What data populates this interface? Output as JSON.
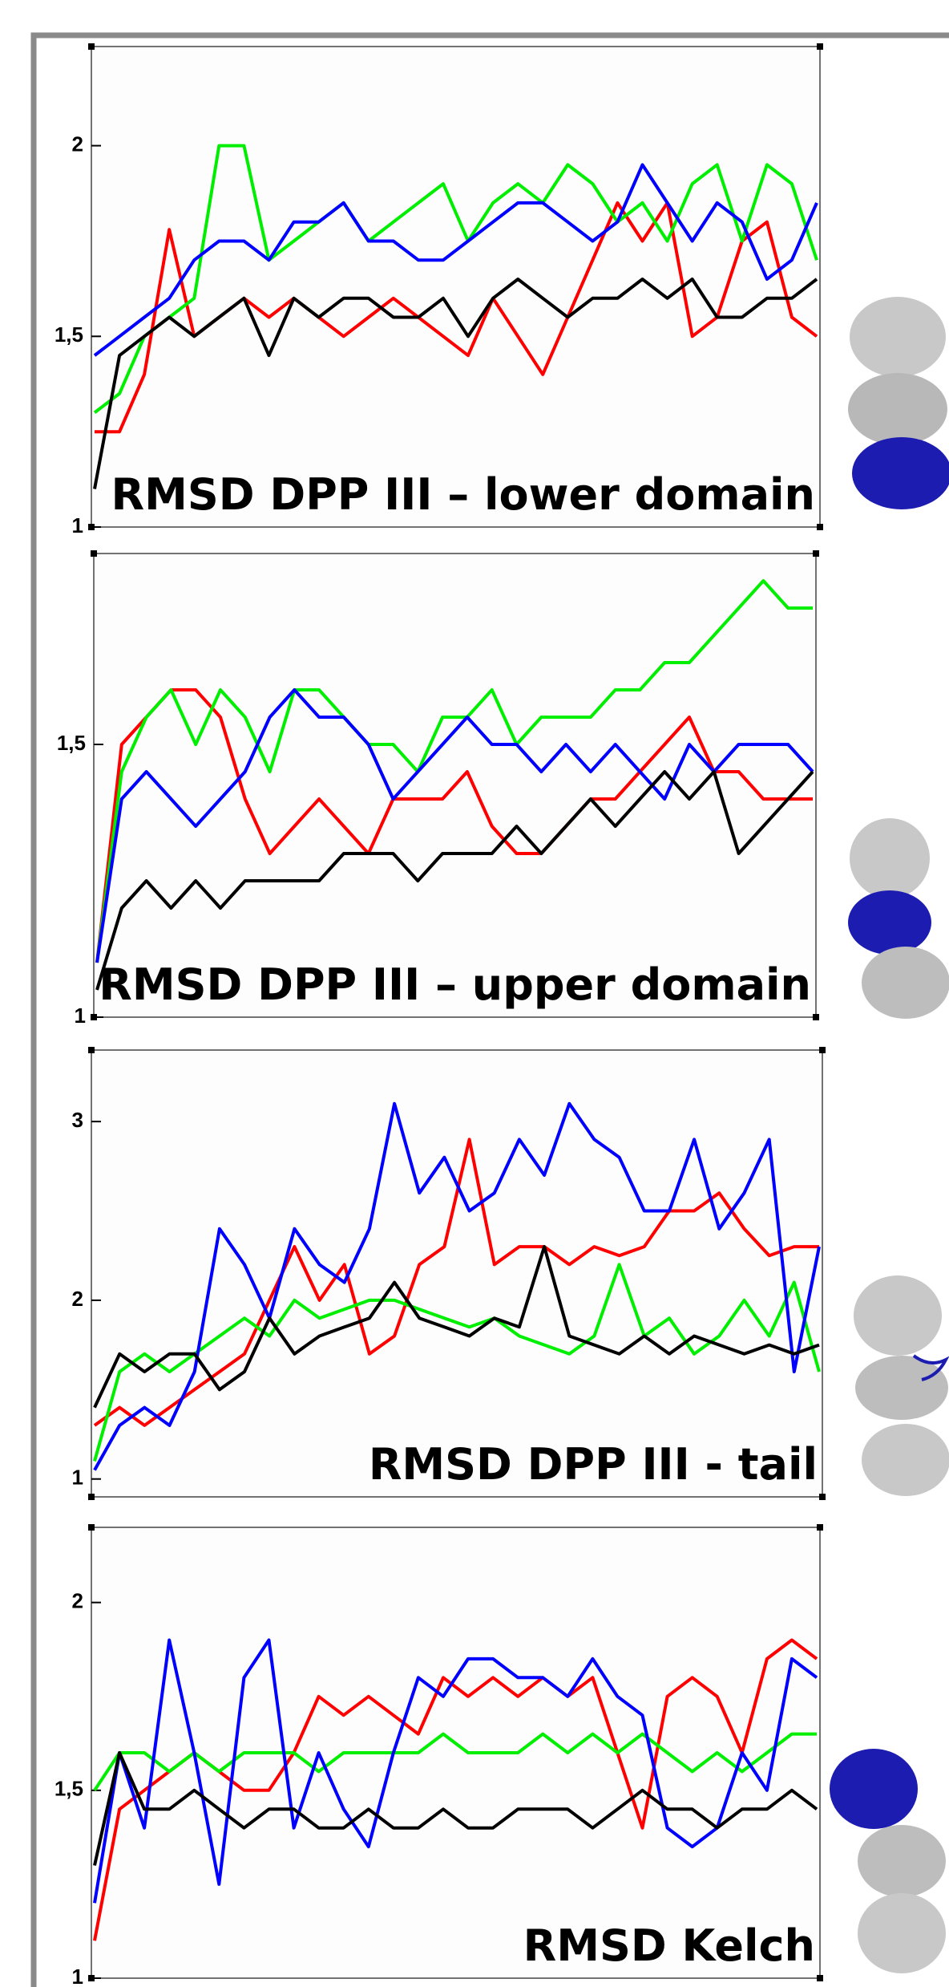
{
  "chart_data": [
    {
      "type": "line",
      "title": "RMSD DPP III – lower domain",
      "ylim": [
        1,
        2.26
      ],
      "yticks": [
        1,
        {
          "value": 1.5,
          "label": "1,5"
        },
        2
      ],
      "series": [
        {
          "color": "#ff0000",
          "values": [
            1.25,
            1.25,
            1.4,
            1.78,
            1.5,
            1.55,
            1.6,
            1.55,
            1.6,
            1.55,
            1.5,
            1.55,
            1.6,
            1.55,
            1.5,
            1.45,
            1.6,
            1.5,
            1.4,
            1.55,
            1.7,
            1.85,
            1.75,
            1.85,
            1.5,
            1.55,
            1.75,
            1.8,
            1.55,
            1.5
          ]
        },
        {
          "color": "#00ee00",
          "values": [
            1.3,
            1.35,
            1.5,
            1.55,
            1.6,
            2.0,
            2.0,
            1.7,
            1.75,
            1.8,
            1.85,
            1.75,
            1.8,
            1.85,
            1.9,
            1.75,
            1.85,
            1.9,
            1.85,
            1.95,
            1.9,
            1.8,
            1.85,
            1.75,
            1.9,
            1.95,
            1.75,
            1.95,
            1.9,
            1.7
          ]
        },
        {
          "color": "#0000ff",
          "values": [
            1.45,
            1.5,
            1.55,
            1.6,
            1.7,
            1.75,
            1.75,
            1.7,
            1.8,
            1.8,
            1.85,
            1.75,
            1.75,
            1.7,
            1.7,
            1.75,
            1.8,
            1.85,
            1.85,
            1.8,
            1.75,
            1.8,
            1.95,
            1.85,
            1.75,
            1.85,
            1.8,
            1.65,
            1.7,
            1.85
          ]
        },
        {
          "color": "#000000",
          "values": [
            1.1,
            1.45,
            1.5,
            1.55,
            1.5,
            1.55,
            1.6,
            1.45,
            1.6,
            1.55,
            1.6,
            1.6,
            1.55,
            1.55,
            1.6,
            1.5,
            1.6,
            1.65,
            1.6,
            1.55,
            1.6,
            1.6,
            1.65,
            1.6,
            1.65,
            1.55,
            1.55,
            1.6,
            1.6,
            1.65
          ]
        }
      ]
    },
    {
      "type": "line",
      "title": "RMSD DPP III – upper domain",
      "ylim": [
        1,
        1.85
      ],
      "yticks": [
        1,
        {
          "value": 1.5,
          "label": "1,5"
        }
      ],
      "series": [
        {
          "color": "#ff0000",
          "values": [
            1.1,
            1.5,
            1.55,
            1.6,
            1.6,
            1.55,
            1.4,
            1.3,
            1.35,
            1.4,
            1.35,
            1.3,
            1.4,
            1.4,
            1.4,
            1.45,
            1.35,
            1.3,
            1.3,
            1.35,
            1.4,
            1.4,
            1.45,
            1.5,
            1.55,
            1.45,
            1.45,
            1.4,
            1.4,
            1.4
          ]
        },
        {
          "color": "#00ee00",
          "values": [
            1.1,
            1.45,
            1.55,
            1.6,
            1.5,
            1.6,
            1.55,
            1.45,
            1.6,
            1.6,
            1.55,
            1.5,
            1.5,
            1.45,
            1.55,
            1.55,
            1.6,
            1.5,
            1.55,
            1.55,
            1.55,
            1.6,
            1.6,
            1.65,
            1.65,
            1.7,
            1.75,
            1.8,
            1.75,
            1.75
          ]
        },
        {
          "color": "#0000ff",
          "values": [
            1.1,
            1.4,
            1.45,
            1.4,
            1.35,
            1.4,
            1.45,
            1.55,
            1.6,
            1.55,
            1.55,
            1.5,
            1.4,
            1.45,
            1.5,
            1.55,
            1.5,
            1.5,
            1.45,
            1.5,
            1.45,
            1.5,
            1.45,
            1.4,
            1.5,
            1.45,
            1.5,
            1.5,
            1.5,
            1.45
          ]
        },
        {
          "color": "#000000",
          "values": [
            1.05,
            1.2,
            1.25,
            1.2,
            1.25,
            1.2,
            1.25,
            1.25,
            1.25,
            1.25,
            1.3,
            1.3,
            1.3,
            1.25,
            1.3,
            1.3,
            1.3,
            1.35,
            1.3,
            1.35,
            1.4,
            1.35,
            1.4,
            1.45,
            1.4,
            1.45,
            1.3,
            1.35,
            1.4,
            1.45
          ]
        }
      ]
    },
    {
      "type": "line",
      "title": "RMSD DPP III - tail",
      "ylim": [
        0.9,
        3.4
      ],
      "yticks": [
        1,
        2,
        3
      ],
      "series": [
        {
          "color": "#ff0000",
          "values": [
            1.3,
            1.4,
            1.3,
            1.4,
            1.5,
            1.6,
            1.7,
            2.0,
            2.3,
            2.0,
            2.2,
            1.7,
            1.8,
            2.2,
            2.3,
            2.9,
            2.2,
            2.3,
            2.3,
            2.2,
            2.3,
            2.25,
            2.3,
            2.5,
            2.5,
            2.6,
            2.4,
            2.25,
            2.3,
            2.3
          ]
        },
        {
          "color": "#00ee00",
          "values": [
            1.1,
            1.6,
            1.7,
            1.6,
            1.7,
            1.8,
            1.9,
            1.8,
            2.0,
            1.9,
            1.95,
            2.0,
            2.0,
            1.95,
            1.9,
            1.85,
            1.9,
            1.8,
            1.75,
            1.7,
            1.8,
            2.2,
            1.8,
            1.9,
            1.7,
            1.8,
            2.0,
            1.8,
            2.1,
            1.6
          ]
        },
        {
          "color": "#0000ff",
          "values": [
            1.05,
            1.3,
            1.4,
            1.3,
            1.6,
            2.4,
            2.2,
            1.9,
            2.4,
            2.2,
            2.1,
            2.4,
            3.1,
            2.6,
            2.8,
            2.5,
            2.6,
            2.9,
            2.7,
            3.1,
            2.9,
            2.8,
            2.5,
            2.5,
            2.9,
            2.4,
            2.6,
            2.9,
            1.6,
            2.3
          ]
        },
        {
          "color": "#000000",
          "values": [
            1.4,
            1.7,
            1.6,
            1.7,
            1.7,
            1.5,
            1.6,
            1.9,
            1.7,
            1.8,
            1.85,
            1.9,
            2.1,
            1.9,
            1.85,
            1.8,
            1.9,
            1.85,
            2.3,
            1.8,
            1.75,
            1.7,
            1.8,
            1.7,
            1.8,
            1.75,
            1.7,
            1.75,
            1.7,
            1.75
          ]
        }
      ]
    },
    {
      "type": "line",
      "title": "RMSD Kelch",
      "ylim": [
        1,
        2.2
      ],
      "yticks": [
        1,
        {
          "value": 1.5,
          "label": "1,5"
        },
        2
      ],
      "series": [
        {
          "color": "#ff0000",
          "values": [
            1.1,
            1.45,
            1.5,
            1.55,
            1.6,
            1.55,
            1.5,
            1.5,
            1.6,
            1.75,
            1.7,
            1.75,
            1.7,
            1.65,
            1.8,
            1.75,
            1.8,
            1.75,
            1.8,
            1.75,
            1.8,
            1.6,
            1.4,
            1.75,
            1.8,
            1.75,
            1.6,
            1.85,
            1.9,
            1.85
          ]
        },
        {
          "color": "#00ee00",
          "values": [
            1.5,
            1.6,
            1.6,
            1.55,
            1.6,
            1.55,
            1.6,
            1.6,
            1.6,
            1.55,
            1.6,
            1.6,
            1.6,
            1.6,
            1.65,
            1.6,
            1.6,
            1.6,
            1.65,
            1.6,
            1.65,
            1.6,
            1.65,
            1.6,
            1.55,
            1.6,
            1.55,
            1.6,
            1.65,
            1.65
          ]
        },
        {
          "color": "#0000ff",
          "values": [
            1.2,
            1.6,
            1.4,
            1.9,
            1.6,
            1.25,
            1.8,
            1.9,
            1.4,
            1.6,
            1.45,
            1.35,
            1.6,
            1.8,
            1.75,
            1.85,
            1.85,
            1.8,
            1.8,
            1.75,
            1.85,
            1.75,
            1.7,
            1.4,
            1.35,
            1.4,
            1.6,
            1.5,
            1.85,
            1.8
          ]
        },
        {
          "color": "#000000",
          "values": [
            1.3,
            1.6,
            1.45,
            1.45,
            1.5,
            1.45,
            1.4,
            1.45,
            1.45,
            1.4,
            1.4,
            1.45,
            1.4,
            1.4,
            1.45,
            1.4,
            1.4,
            1.45,
            1.45,
            1.45,
            1.4,
            1.45,
            1.5,
            1.45,
            1.45,
            1.4,
            1.45,
            1.45,
            1.5,
            1.45
          ]
        }
      ]
    }
  ]
}
